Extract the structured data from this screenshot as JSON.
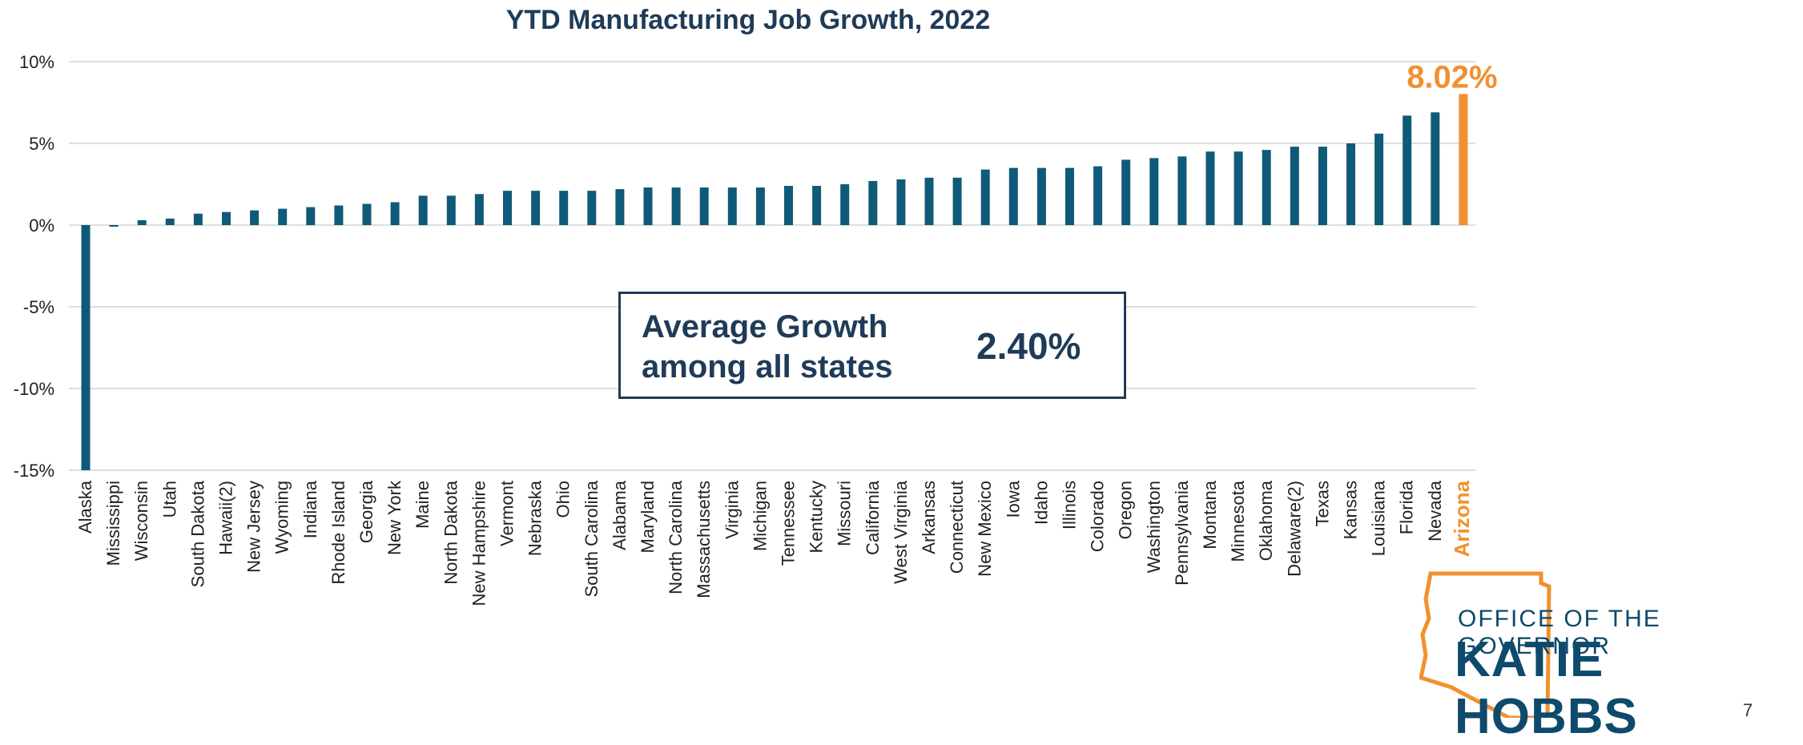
{
  "chart_data": {
    "type": "bar",
    "title": "YTD Manufacturing Job Growth, 2022",
    "xlabel": "",
    "ylabel": "",
    "ylim": [
      -15,
      10
    ],
    "yticks": [
      10,
      5,
      0,
      -5,
      -10,
      -15
    ],
    "ytick_labels": [
      "10%",
      "5%",
      "0%",
      "-5%",
      "-10%",
      "-15%"
    ],
    "grid": true,
    "categories": [
      "Alaska",
      "Mississippi",
      "Wisconsin",
      "Utah",
      "South Dakota",
      "Hawaii(2)",
      "New Jersey",
      "Wyoming",
      "Indiana",
      "Rhode Island",
      "Georgia",
      "New York",
      "Maine",
      "North Dakota",
      "New Hampshire",
      "Vermont",
      "Nebraska",
      "Ohio",
      "South Carolina",
      "Alabama",
      "Maryland",
      "North Carolina",
      "Massachusetts",
      "Virginia",
      "Michigan",
      "Tennessee",
      "Kentucky",
      "Missouri",
      "California",
      "West Virginia",
      "Arkansas",
      "Connecticut",
      "New Mexico",
      "Iowa",
      "Idaho",
      "Illinois",
      "Colorado",
      "Oregon",
      "Washington",
      "Pennsylvania",
      "Montana",
      "Minnesota",
      "Oklahoma",
      "Delaware(2)",
      "Texas",
      "Kansas",
      "Louisiana",
      "Florida",
      "Nevada",
      "Arizona"
    ],
    "values": [
      -15.0,
      -0.1,
      0.3,
      0.4,
      0.7,
      0.8,
      0.9,
      1.0,
      1.1,
      1.2,
      1.3,
      1.4,
      1.8,
      1.8,
      1.9,
      2.1,
      2.1,
      2.1,
      2.1,
      2.2,
      2.3,
      2.3,
      2.3,
      2.3,
      2.3,
      2.4,
      2.4,
      2.5,
      2.7,
      2.8,
      2.9,
      2.9,
      3.4,
      3.5,
      3.5,
      3.5,
      3.6,
      4.0,
      4.1,
      4.2,
      4.5,
      4.5,
      4.6,
      4.8,
      4.8,
      5.0,
      5.6,
      6.7,
      6.9,
      8.02
    ],
    "highlight": {
      "category": "Arizona",
      "label": "8.02%",
      "color": "#f0912f"
    },
    "bar_color": "#0e5a78",
    "average": {
      "label": "Average Growth among all states",
      "value": "2.40%"
    }
  },
  "logo": {
    "line1": "OFFICE OF THE GOVERNOR",
    "line2": "KATIE HOBBS",
    "outline_color": "#f0912f",
    "text_color": "#0e4a6b"
  },
  "page_number": "7"
}
